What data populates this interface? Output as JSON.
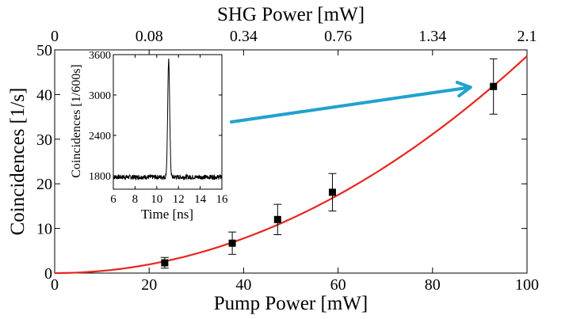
{
  "chart_data": [
    {
      "type": "scatter",
      "xlabel": "Pump Power [mW]",
      "ylabel": "Coincidences [1/s]",
      "x2label": "SHG Power [mW]",
      "xlim": [
        0,
        100
      ],
      "ylim": [
        0,
        50
      ],
      "x_ticks": [
        0,
        20,
        40,
        60,
        80,
        100
      ],
      "y_ticks": [
        0,
        10,
        20,
        30,
        40,
        50
      ],
      "x_tick_labels": [
        "0",
        "20",
        "40",
        "60",
        "80",
        "100"
      ],
      "y_tick_labels": [
        "0",
        "10",
        "20",
        "30",
        "40",
        "50"
      ],
      "x2_ticks": [
        {
          "label": "0",
          "at": 0
        },
        {
          "label": "0.08",
          "at": 20
        },
        {
          "label": "0.34",
          "at": 40
        },
        {
          "label": "0.76",
          "at": 60
        },
        {
          "label": "1.34",
          "at": 80
        },
        {
          "label": "2.1",
          "at": 100
        }
      ],
      "points": [
        {
          "x": 23.3,
          "y": 2.3,
          "err": 1.2
        },
        {
          "x": 37.6,
          "y": 6.7,
          "err": 2.5
        },
        {
          "x": 47.2,
          "y": 12.0,
          "err": 3.4
        },
        {
          "x": 58.8,
          "y": 18.1,
          "err": 4.2
        },
        {
          "x": 92.9,
          "y": 41.8,
          "err": 6.2
        }
      ],
      "fit": {
        "type": "quadratic",
        "coefficient": 0.00486,
        "color": "#e8251e"
      },
      "arrow_color": "#1fa2cf",
      "grid": false
    },
    {
      "type": "line",
      "xlabel": "Time [ns]",
      "ylabel": "Coincidences [1/600s]",
      "xlim": [
        6,
        16
      ],
      "ylim": [
        1600,
        3600
      ],
      "x_ticks": [
        6,
        8,
        10,
        12,
        14,
        16
      ],
      "y_ticks": [
        1800,
        2400,
        3000,
        3600
      ],
      "x_tick_labels": [
        "6",
        "8",
        "10",
        "12",
        "14",
        "16"
      ],
      "y_tick_labels": [
        "1800",
        "2400",
        "3000",
        "3600"
      ],
      "baseline": 1780,
      "peak": {
        "x": 11.1,
        "y": 3510,
        "width_ns": 0.13
      },
      "grid": false
    }
  ]
}
